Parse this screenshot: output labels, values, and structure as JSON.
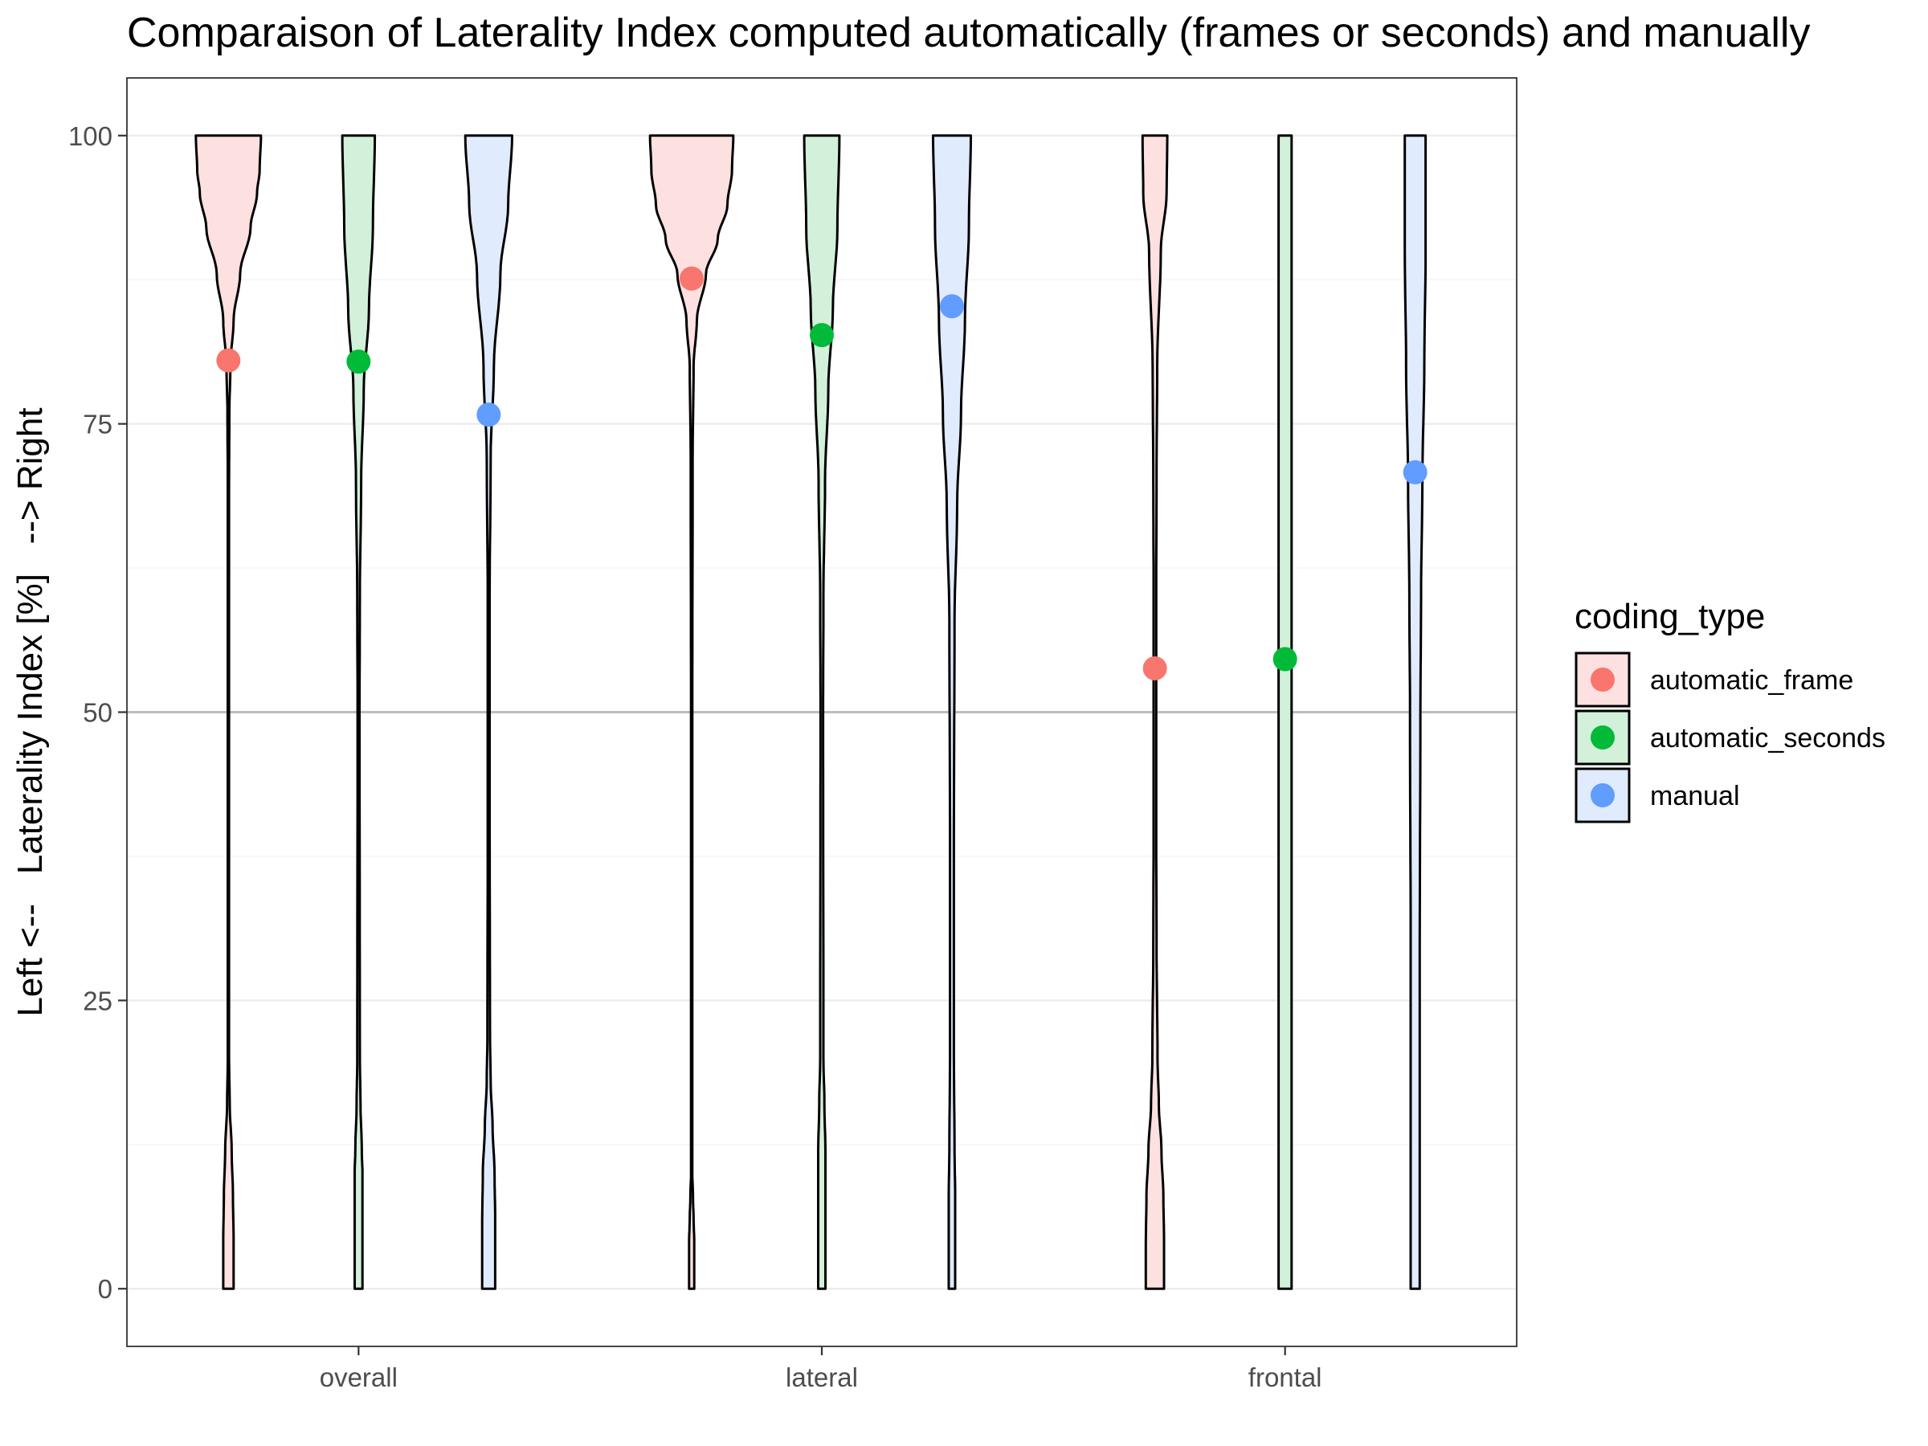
{
  "chart_data": {
    "type": "violin",
    "title": "Comparaison of Laterality Index computed automatically (frames or seconds) and manually",
    "xlabel": "",
    "ylabel": "Left <--   Laterality Index [%]   --> Right",
    "ylim": [
      -5,
      105
    ],
    "yticks": [
      0,
      25,
      50,
      75,
      100
    ],
    "reference_line_y": 50,
    "grid": "on",
    "legend": {
      "title": "coding_type",
      "placement": "right",
      "entries": [
        "automatic_frame",
        "automatic_seconds",
        "manual"
      ]
    },
    "categories": [
      "overall",
      "lateral",
      "frontal"
    ],
    "series": [
      {
        "name": "automatic_frame",
        "color": "#F8766D",
        "fill": "#FDE0E0",
        "means": [
          80.5,
          87.6,
          53.8
        ],
        "density_profiles": [
          [
            [
              0,
              0.08
            ],
            [
              4,
              0.08
            ],
            [
              8,
              0.07
            ],
            [
              12,
              0.05
            ],
            [
              16,
              0.02
            ],
            [
              20,
              0.01
            ],
            [
              30,
              0.01
            ],
            [
              50,
              0.01
            ],
            [
              70,
              0.01
            ],
            [
              76,
              0.015
            ],
            [
              80,
              0.03
            ],
            [
              84,
              0.08
            ],
            [
              88,
              0.18
            ],
            [
              92,
              0.34
            ],
            [
              95,
              0.44
            ],
            [
              97,
              0.48
            ],
            [
              100,
              0.5
            ]
          ],
          [
            [
              0,
              0.04
            ],
            [
              4,
              0.04
            ],
            [
              6,
              0.03
            ],
            [
              8,
              0.02
            ],
            [
              10,
              0.01
            ],
            [
              20,
              0.01
            ],
            [
              50,
              0.01
            ],
            [
              72,
              0.015
            ],
            [
              80,
              0.03
            ],
            [
              84,
              0.08
            ],
            [
              88,
              0.22
            ],
            [
              91,
              0.4
            ],
            [
              94,
              0.55
            ],
            [
              97,
              0.62
            ],
            [
              100,
              0.64
            ]
          ],
          [
            [
              0,
              0.14
            ],
            [
              4,
              0.14
            ],
            [
              8,
              0.13
            ],
            [
              12,
              0.1
            ],
            [
              16,
              0.06
            ],
            [
              20,
              0.04
            ],
            [
              30,
              0.025
            ],
            [
              40,
              0.02
            ],
            [
              50,
              0.02
            ],
            [
              60,
              0.02
            ],
            [
              70,
              0.025
            ],
            [
              80,
              0.035
            ],
            [
              90,
              0.09
            ],
            [
              95,
              0.18
            ],
            [
              100,
              0.19
            ]
          ]
        ]
      },
      {
        "name": "automatic_seconds",
        "color": "#00BA38",
        "fill": "#D2F0DA",
        "means": [
          80.4,
          82.7,
          54.6
        ],
        "density_profiles": [
          [
            [
              0,
              0.06
            ],
            [
              10,
              0.06
            ],
            [
              12,
              0.05
            ],
            [
              16,
              0.03
            ],
            [
              20,
              0.02
            ],
            [
              50,
              0.015
            ],
            [
              60,
              0.02
            ],
            [
              70,
              0.04
            ],
            [
              78,
              0.08
            ],
            [
              85,
              0.16
            ],
            [
              92,
              0.22
            ],
            [
              100,
              0.25
            ]
          ],
          [
            [
              0,
              0.055
            ],
            [
              12,
              0.055
            ],
            [
              16,
              0.04
            ],
            [
              20,
              0.025
            ],
            [
              50,
              0.02
            ],
            [
              60,
              0.025
            ],
            [
              70,
              0.05
            ],
            [
              78,
              0.1
            ],
            [
              85,
              0.17
            ],
            [
              92,
              0.24
            ],
            [
              100,
              0.27
            ]
          ],
          [
            [
              0,
              0.1
            ],
            [
              25,
              0.1
            ],
            [
              50,
              0.1
            ],
            [
              75,
              0.1
            ],
            [
              100,
              0.1
            ]
          ]
        ]
      },
      {
        "name": "manual",
        "color": "#619CFF",
        "fill": "#E0EBFD",
        "means": [
          75.8,
          85.2,
          70.8
        ],
        "density_profiles": [
          [
            [
              0,
              0.1
            ],
            [
              6,
              0.1
            ],
            [
              10,
              0.09
            ],
            [
              14,
              0.06
            ],
            [
              18,
              0.03
            ],
            [
              22,
              0.02
            ],
            [
              40,
              0.015
            ],
            [
              60,
              0.015
            ],
            [
              72,
              0.03
            ],
            [
              80,
              0.08
            ],
            [
              88,
              0.18
            ],
            [
              94,
              0.3
            ],
            [
              100,
              0.36
            ]
          ],
          [
            [
              0,
              0.05
            ],
            [
              8,
              0.05
            ],
            [
              12,
              0.04
            ],
            [
              20,
              0.03
            ],
            [
              40,
              0.03
            ],
            [
              58,
              0.04
            ],
            [
              68,
              0.08
            ],
            [
              76,
              0.14
            ],
            [
              84,
              0.2
            ],
            [
              92,
              0.26
            ],
            [
              100,
              0.29
            ]
          ],
          [
            [
              0,
              0.07
            ],
            [
              30,
              0.07
            ],
            [
              50,
              0.08
            ],
            [
              60,
              0.09
            ],
            [
              70,
              0.11
            ],
            [
              80,
              0.14
            ],
            [
              90,
              0.16
            ],
            [
              100,
              0.16
            ]
          ]
        ]
      }
    ]
  }
}
